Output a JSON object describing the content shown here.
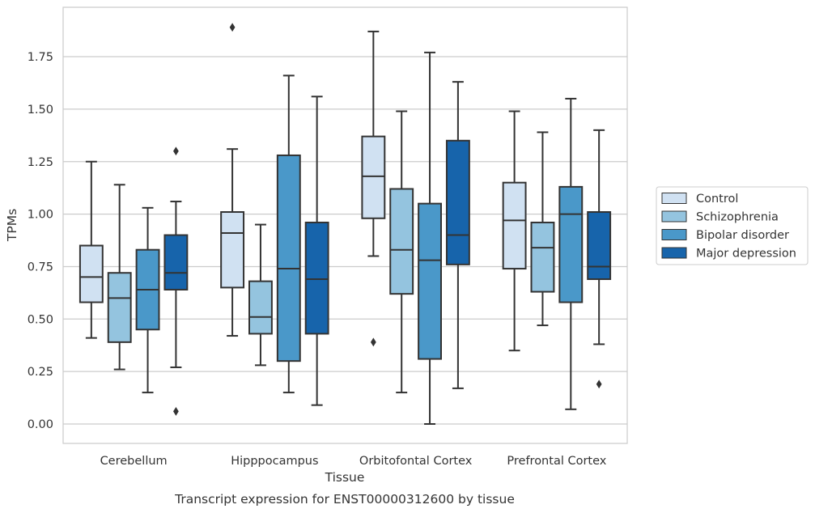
{
  "chart_data": {
    "type": "boxplot",
    "xlabel": "Tissue",
    "ylabel": "TPMs",
    "caption": "Transcript expression for ENST00000312600 by tissue",
    "ylim": [
      -0.09,
      1.99
    ],
    "yticks": [
      "0.00",
      "0.25",
      "0.50",
      "0.75",
      "1.00",
      "1.25",
      "1.50",
      "1.75"
    ],
    "grid": "horizontal",
    "legend_position": "right",
    "categories": [
      "Cerebellum",
      "Hipppocampus",
      "Orbitofontal Cortex",
      "Prefrontal Cortex"
    ],
    "series": [
      {
        "name": "Control",
        "color": "#d0e1f2",
        "boxes": [
          {
            "whisker_low": 0.41,
            "q1": 0.58,
            "median": 0.7,
            "q3": 0.85,
            "whisker_high": 1.25,
            "outliers": []
          },
          {
            "whisker_low": 0.42,
            "q1": 0.65,
            "median": 0.91,
            "q3": 1.01,
            "whisker_high": 1.31,
            "outliers": [
              1.89
            ]
          },
          {
            "whisker_low": 0.8,
            "q1": 0.98,
            "median": 1.18,
            "q3": 1.37,
            "whisker_high": 1.87,
            "outliers": [
              0.39
            ]
          },
          {
            "whisker_low": 0.35,
            "q1": 0.74,
            "median": 0.97,
            "q3": 1.15,
            "whisker_high": 1.49,
            "outliers": []
          }
        ]
      },
      {
        "name": "Schizophrenia",
        "color": "#94c4df",
        "boxes": [
          {
            "whisker_low": 0.26,
            "q1": 0.39,
            "median": 0.6,
            "q3": 0.72,
            "whisker_high": 1.14,
            "outliers": []
          },
          {
            "whisker_low": 0.28,
            "q1": 0.43,
            "median": 0.51,
            "q3": 0.68,
            "whisker_high": 0.95,
            "outliers": []
          },
          {
            "whisker_low": 0.15,
            "q1": 0.62,
            "median": 0.83,
            "q3": 1.12,
            "whisker_high": 1.49,
            "outliers": []
          },
          {
            "whisker_low": 0.47,
            "q1": 0.63,
            "median": 0.84,
            "q3": 0.96,
            "whisker_high": 1.39,
            "outliers": []
          }
        ]
      },
      {
        "name": "Bipolar disorder",
        "color": "#4a98c9",
        "boxes": [
          {
            "whisker_low": 0.15,
            "q1": 0.45,
            "median": 0.64,
            "q3": 0.83,
            "whisker_high": 1.03,
            "outliers": []
          },
          {
            "whisker_low": 0.15,
            "q1": 0.3,
            "median": 0.74,
            "q3": 1.28,
            "whisker_high": 1.66,
            "outliers": []
          },
          {
            "whisker_low": 0.0,
            "q1": 0.31,
            "median": 0.78,
            "q3": 1.05,
            "whisker_high": 1.77,
            "outliers": []
          },
          {
            "whisker_low": 0.07,
            "q1": 0.58,
            "median": 1.0,
            "q3": 1.13,
            "whisker_high": 1.55,
            "outliers": []
          }
        ]
      },
      {
        "name": "Major depression",
        "color": "#1764ab",
        "boxes": [
          {
            "whisker_low": 0.27,
            "q1": 0.64,
            "median": 0.72,
            "q3": 0.9,
            "whisker_high": 1.06,
            "outliers": [
              1.3,
              0.06
            ]
          },
          {
            "whisker_low": 0.09,
            "q1": 0.43,
            "median": 0.69,
            "q3": 0.96,
            "whisker_high": 1.56,
            "outliers": []
          },
          {
            "whisker_low": 0.17,
            "q1": 0.76,
            "median": 0.9,
            "q3": 1.35,
            "whisker_high": 1.63,
            "outliers": []
          },
          {
            "whisker_low": 0.38,
            "q1": 0.69,
            "median": 0.75,
            "q3": 1.01,
            "whisker_high": 1.4,
            "outliers": [
              0.19
            ]
          }
        ]
      }
    ]
  }
}
